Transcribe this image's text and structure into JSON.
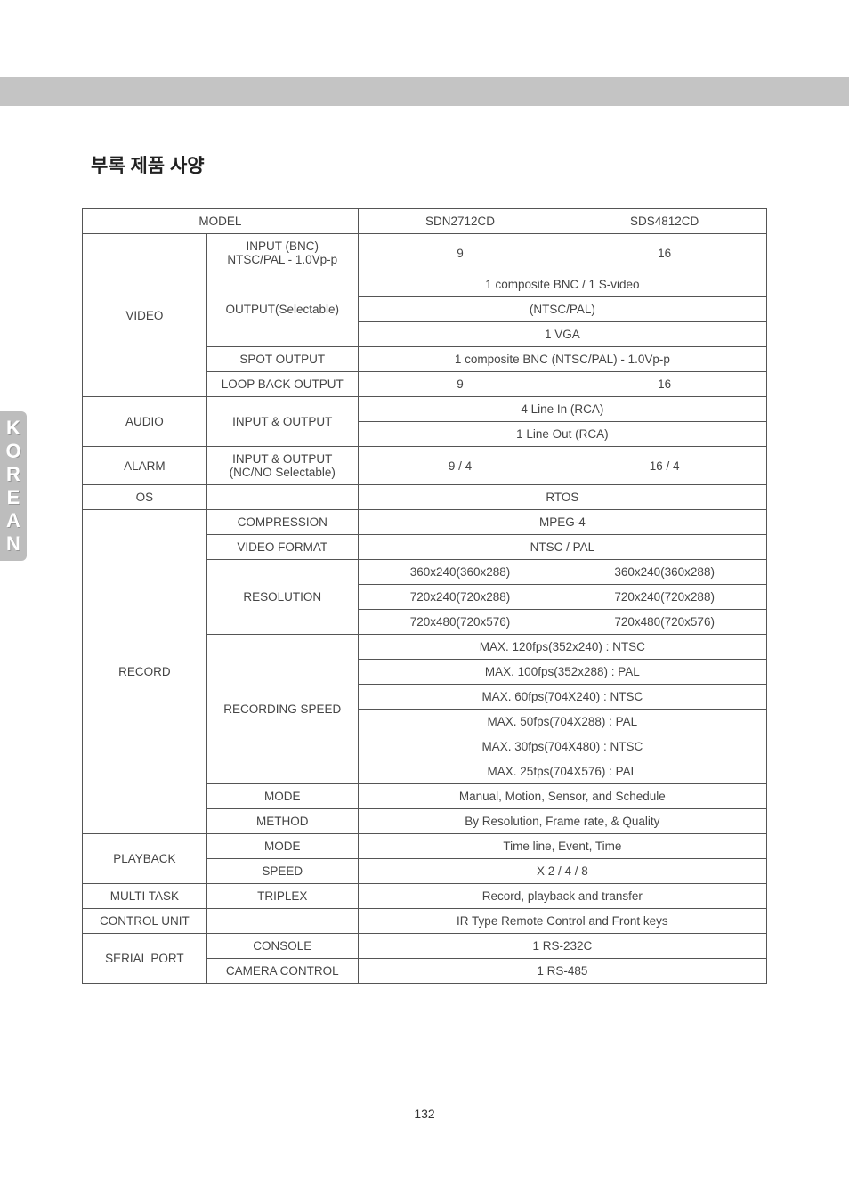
{
  "page": {
    "title": "부록     제품 사양",
    "page_number": "132",
    "side_label": [
      "K",
      "O",
      "R",
      "E",
      "A",
      "N"
    ],
    "colors": {
      "top_bar": "#c4c4c4",
      "side_tab_bg": "#bdbdbd",
      "side_tab_text": "#ffffff",
      "border": "#555555",
      "text": "#444444",
      "background": "#ffffff"
    },
    "fonts": {
      "title_size_pt": 16,
      "body_size_pt": 10,
      "side_size_pt": 16
    },
    "table": {
      "header": {
        "a": "MODEL",
        "b": "",
        "c": "SDN2712CD",
        "d": "SDS4812CD"
      },
      "rows": [
        {
          "a": "VIDEO",
          "a_rowspan": 6,
          "b": "INPUT (BNC)\nNTSC/PAL - 1.0Vp-p",
          "b_rowspan": 1,
          "c": "9",
          "d": "16"
        },
        {
          "b": "OUTPUT(Selectable)",
          "b_rowspan": 3,
          "cd": "1 composite BNC / 1 S-video"
        },
        {
          "cd": "(NTSC/PAL)"
        },
        {
          "cd": "1 VGA"
        },
        {
          "b": "SPOT OUTPUT",
          "cd": "1 composite BNC (NTSC/PAL) - 1.0Vp-p"
        },
        {
          "b": "LOOP BACK OUTPUT",
          "c": "9",
          "d": "16"
        },
        {
          "a": "AUDIO",
          "a_rowspan": 2,
          "b": "INPUT & OUTPUT",
          "b_rowspan": 2,
          "cd": "4 Line In (RCA)"
        },
        {
          "cd": "1 Line Out (RCA)"
        },
        {
          "a": "ALARM",
          "b": "INPUT & OUTPUT\n(NC/NO Selectable)",
          "c": "9 / 4",
          "d": "16 / 4"
        },
        {
          "a": "OS",
          "b": "",
          "cd": "RTOS"
        },
        {
          "a": "RECORD",
          "a_rowspan": 13,
          "b": "COMPRESSION",
          "cd": "MPEG-4"
        },
        {
          "b": "VIDEO FORMAT",
          "cd": "NTSC / PAL"
        },
        {
          "b": "RESOLUTION",
          "b_rowspan": 3,
          "c": "360x240(360x288)",
          "d": "360x240(360x288)"
        },
        {
          "c": "720x240(720x288)",
          "d": "720x240(720x288)"
        },
        {
          "c": "720x480(720x576)",
          "d": "720x480(720x576)"
        },
        {
          "b": "RECORDING SPEED",
          "b_rowspan": 6,
          "cd": "MAX. 120fps(352x240) : NTSC"
        },
        {
          "cd": "MAX. 100fps(352x288) : PAL"
        },
        {
          "cd": "MAX. 60fps(704X240) : NTSC"
        },
        {
          "cd": "MAX. 50fps(704X288) : PAL"
        },
        {
          "cd": "MAX. 30fps(704X480) : NTSC"
        },
        {
          "cd": "MAX. 25fps(704X576) : PAL"
        },
        {
          "b": "MODE",
          "cd": "Manual, Motion, Sensor, and Schedule"
        },
        {
          "b": "METHOD",
          "cd": "By Resolution, Frame rate, & Quality"
        },
        {
          "a": "PLAYBACK",
          "a_rowspan": 2,
          "b": "MODE",
          "cd": "Time line, Event, Time"
        },
        {
          "b": "SPEED",
          "cd": "X 2 / 4 / 8"
        },
        {
          "a": "MULTI TASK",
          "b": "TRIPLEX",
          "cd": "Record, playback and transfer"
        },
        {
          "a": "CONTROL UNIT",
          "b": "",
          "cd": "IR Type Remote Control and Front keys"
        },
        {
          "a": "SERIAL PORT",
          "a_rowspan": 2,
          "b": "CONSOLE",
          "cd": "1 RS-232C"
        },
        {
          "b": "CAMERA CONTROL",
          "cd": "1 RS-485"
        }
      ]
    }
  }
}
